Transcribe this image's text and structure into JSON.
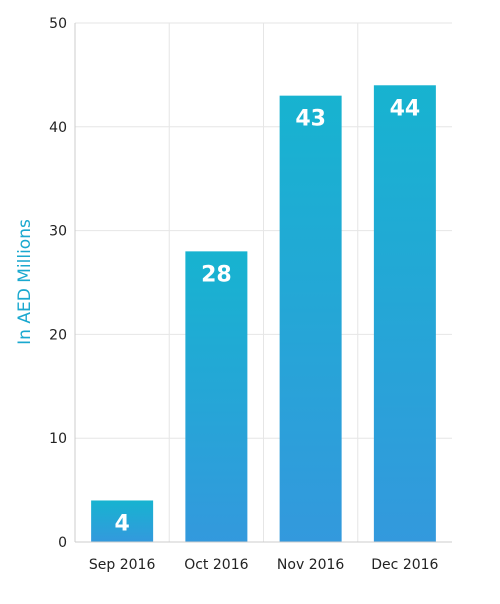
{
  "chart_data": {
    "type": "bar",
    "categories": [
      "Sep 2016",
      "Oct 2016",
      "Nov 2016",
      "Dec 2016"
    ],
    "values": [
      4,
      28,
      43,
      44
    ],
    "data_labels": [
      "4",
      "28",
      "43",
      "44"
    ],
    "title": "",
    "xlabel": "",
    "ylabel": "In AED Millions",
    "ylim": [
      0,
      50
    ],
    "yticks": [
      "0",
      "10",
      "20",
      "30",
      "40",
      "50"
    ],
    "grid": true,
    "legend": "none",
    "colors": {
      "bar_top": "#17b3d0",
      "bar_bottom": "#3399dd",
      "ylabel": "#1aa8cf",
      "grid": "#e6e6e6",
      "axis": "#cccccc"
    }
  }
}
